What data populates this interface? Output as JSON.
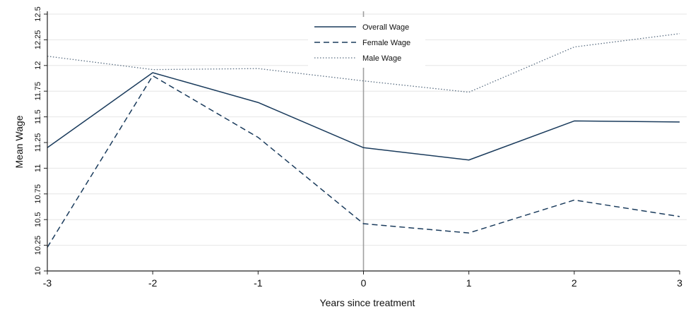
{
  "chart_data": {
    "type": "line",
    "xlabel": "Years since treatment",
    "ylabel": "Mean Wage",
    "x": [
      -3,
      -2,
      -1,
      0,
      1,
      2,
      3
    ],
    "xticks": [
      "-3",
      "-2",
      "-1",
      "0",
      "1",
      "2",
      "3"
    ],
    "xlim": [
      -3,
      3
    ],
    "ylim": [
      10,
      12.5
    ],
    "yticks": [
      "10",
      "10.25",
      "10.5",
      "10.75",
      "11",
      "11.25",
      "11.5",
      "11.75",
      "12",
      "12.25",
      "12.5"
    ],
    "grid": true,
    "reference_line_x": 0,
    "legend_position": "top-center",
    "series": [
      {
        "name": "Overall Wage",
        "style": "solid",
        "color": "#1a3b5c",
        "values": [
          11.2,
          11.93,
          11.64,
          11.2,
          11.08,
          11.46,
          11.45
        ]
      },
      {
        "name": "Female Wage",
        "style": "dashed",
        "color": "#1a3b5c",
        "values": [
          10.23,
          11.9,
          11.3,
          10.46,
          10.37,
          10.69,
          10.53
        ]
      },
      {
        "name": "Male Wage",
        "style": "dotted",
        "color": "#5a6e82",
        "values": [
          12.09,
          11.96,
          11.97,
          11.85,
          11.74,
          12.18,
          12.31
        ]
      }
    ]
  },
  "colors": {
    "grid": "#e6e6e6",
    "axis": "#222222",
    "reference_line": "#a0a0a0",
    "background": "#ffffff"
  }
}
